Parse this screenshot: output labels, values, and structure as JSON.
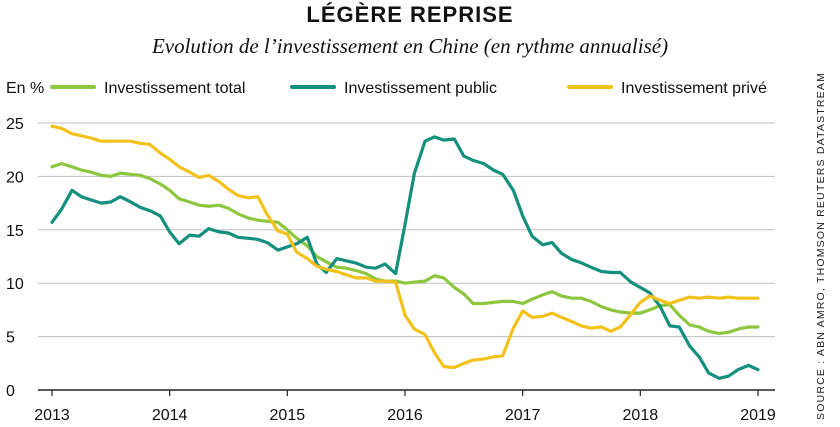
{
  "title": "LÉGÈRE REPRISE",
  "subtitle": "Evolution de l’investissement en Chine (en rythme annualisé)",
  "source": "SOURCE : ABN AMRO, THOMSON REUTERS DATASTREAM",
  "chart_data": {
    "type": "line",
    "ylabel": "En %",
    "ylim": [
      0,
      25
    ],
    "xlim": [
      2013,
      2019
    ],
    "yticks": [
      0,
      5,
      10,
      15,
      20,
      25
    ],
    "xticks": [
      "2013",
      "2014",
      "2015",
      "2016",
      "2017",
      "2018",
      "2019"
    ],
    "grid": true,
    "legend_position": "top",
    "series": [
      {
        "name": "Investissement total",
        "color": "#8dc63f",
        "x": [
          2013.0,
          2013.08,
          2013.17,
          2013.25,
          2013.33,
          2013.42,
          2013.5,
          2013.58,
          2013.67,
          2013.75,
          2013.83,
          2013.92,
          2014.0,
          2014.08,
          2014.17,
          2014.25,
          2014.33,
          2014.42,
          2014.5,
          2014.58,
          2014.67,
          2014.75,
          2014.83,
          2014.92,
          2015.0,
          2015.08,
          2015.17,
          2015.25,
          2015.33,
          2015.42,
          2015.5,
          2015.58,
          2015.67,
          2015.75,
          2015.83,
          2015.92,
          2016.0,
          2016.08,
          2016.17,
          2016.25,
          2016.33,
          2016.42,
          2016.5,
          2016.58,
          2016.67,
          2016.75,
          2016.83,
          2016.92,
          2017.0,
          2017.08,
          2017.17,
          2017.25,
          2017.33,
          2017.42,
          2017.5,
          2017.58,
          2017.67,
          2017.75,
          2017.83,
          2017.92,
          2018.0,
          2018.08,
          2018.17,
          2018.25,
          2018.33,
          2018.42,
          2018.5,
          2018.58,
          2018.67,
          2018.75,
          2018.83,
          2018.92,
          2019.0
        ],
        "values": [
          20.9,
          21.2,
          20.9,
          20.6,
          20.4,
          20.1,
          20.0,
          20.3,
          20.2,
          20.1,
          19.8,
          19.3,
          18.7,
          17.9,
          17.6,
          17.3,
          17.2,
          17.3,
          17.0,
          16.5,
          16.1,
          15.9,
          15.8,
          15.7,
          15.0,
          14.2,
          13.5,
          12.5,
          12.0,
          11.5,
          11.4,
          11.2,
          10.9,
          10.4,
          10.2,
          10.2,
          10.0,
          10.1,
          10.2,
          10.7,
          10.5,
          9.6,
          9.0,
          8.1,
          8.1,
          8.2,
          8.3,
          8.3,
          8.1,
          8.5,
          8.9,
          9.2,
          8.8,
          8.6,
          8.6,
          8.3,
          7.8,
          7.5,
          7.3,
          7.2,
          7.2,
          7.5,
          7.9,
          8.0,
          7.0,
          6.1,
          5.9,
          5.5,
          5.3,
          5.4,
          5.7,
          5.9,
          5.9
        ]
      },
      {
        "name": "Investissement public",
        "color": "#138f7d",
        "x": [
          2013.0,
          2013.08,
          2013.17,
          2013.25,
          2013.33,
          2013.42,
          2013.5,
          2013.58,
          2013.67,
          2013.75,
          2013.83,
          2013.92,
          2014.0,
          2014.08,
          2014.17,
          2014.25,
          2014.33,
          2014.42,
          2014.5,
          2014.58,
          2014.67,
          2014.75,
          2014.83,
          2014.92,
          2015.0,
          2015.08,
          2015.17,
          2015.25,
          2015.33,
          2015.42,
          2015.5,
          2015.58,
          2015.67,
          2015.75,
          2015.83,
          2015.92,
          2016.0,
          2016.08,
          2016.17,
          2016.25,
          2016.33,
          2016.42,
          2016.5,
          2016.58,
          2016.67,
          2016.75,
          2016.83,
          2016.92,
          2017.0,
          2017.08,
          2017.17,
          2017.25,
          2017.33,
          2017.42,
          2017.5,
          2017.58,
          2017.67,
          2017.75,
          2017.83,
          2017.92,
          2018.0,
          2018.08,
          2018.17,
          2018.25,
          2018.33,
          2018.42,
          2018.5,
          2018.58,
          2018.67,
          2018.75,
          2018.83,
          2018.92,
          2019.0
        ],
        "values": [
          15.7,
          16.9,
          18.7,
          18.1,
          17.8,
          17.5,
          17.6,
          18.1,
          17.6,
          17.1,
          16.8,
          16.3,
          14.8,
          13.7,
          14.5,
          14.4,
          15.1,
          14.8,
          14.7,
          14.3,
          14.2,
          14.1,
          13.8,
          13.1,
          13.4,
          13.7,
          14.3,
          11.8,
          11.0,
          12.3,
          12.1,
          11.9,
          11.5,
          11.4,
          11.8,
          10.9,
          15.5,
          20.3,
          23.3,
          23.7,
          23.4,
          23.5,
          21.9,
          21.5,
          21.2,
          20.6,
          20.2,
          18.7,
          16.3,
          14.4,
          13.6,
          13.8,
          12.8,
          12.2,
          11.9,
          11.5,
          11.1,
          11.0,
          11.0,
          10.1,
          9.6,
          9.1,
          7.8,
          6.0,
          5.9,
          4.1,
          3.1,
          1.6,
          1.1,
          1.3,
          1.9,
          2.3,
          1.9
        ]
      },
      {
        "name": "Investissement privé",
        "color": "#f2c21b",
        "x": [
          2013.0,
          2013.08,
          2013.17,
          2013.25,
          2013.33,
          2013.42,
          2013.5,
          2013.58,
          2013.67,
          2013.75,
          2013.83,
          2013.92,
          2014.0,
          2014.08,
          2014.17,
          2014.25,
          2014.33,
          2014.42,
          2014.5,
          2014.58,
          2014.67,
          2014.75,
          2014.83,
          2014.92,
          2015.0,
          2015.08,
          2015.17,
          2015.25,
          2015.33,
          2015.42,
          2015.5,
          2015.58,
          2015.67,
          2015.75,
          2015.83,
          2015.92,
          2016.0,
          2016.08,
          2016.17,
          2016.25,
          2016.33,
          2016.42,
          2016.5,
          2016.58,
          2016.67,
          2016.75,
          2016.83,
          2016.92,
          2017.0,
          2017.08,
          2017.17,
          2017.25,
          2017.33,
          2017.42,
          2017.5,
          2017.58,
          2017.67,
          2017.75,
          2017.83,
          2017.92,
          2018.0,
          2018.08,
          2018.17,
          2018.25,
          2018.33,
          2018.42,
          2018.5,
          2018.58,
          2018.67,
          2018.75,
          2018.83,
          2018.92,
          2019.0
        ],
        "values": [
          24.7,
          24.5,
          24.0,
          23.8,
          23.6,
          23.3,
          23.3,
          23.3,
          23.3,
          23.1,
          23.0,
          22.2,
          21.6,
          20.9,
          20.4,
          19.9,
          20.1,
          19.5,
          18.8,
          18.2,
          18.0,
          18.1,
          16.4,
          14.9,
          14.6,
          12.9,
          12.3,
          11.6,
          11.3,
          11.1,
          10.8,
          10.5,
          10.5,
          10.2,
          10.2,
          10.1,
          7.0,
          5.7,
          5.2,
          3.5,
          2.2,
          2.1,
          2.5,
          2.8,
          2.9,
          3.1,
          3.2,
          5.8,
          7.4,
          6.8,
          6.9,
          7.2,
          6.8,
          6.4,
          6.0,
          5.8,
          5.9,
          5.5,
          5.9,
          7.1,
          8.2,
          8.8,
          8.4,
          8.1,
          8.4,
          8.7,
          8.6,
          8.7,
          8.6,
          8.7,
          8.6,
          8.6,
          8.6
        ]
      }
    ]
  }
}
